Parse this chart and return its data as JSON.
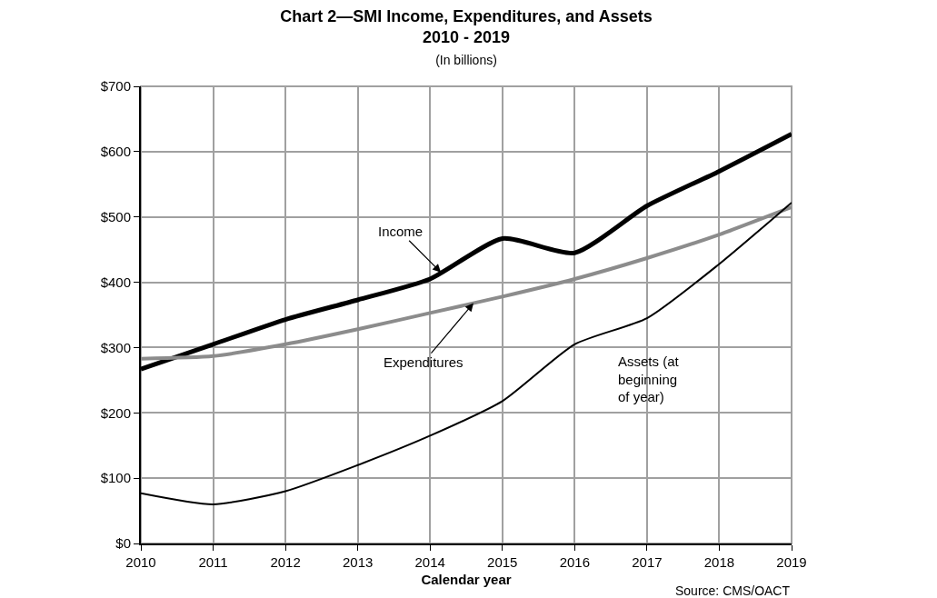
{
  "chart_data": {
    "type": "line",
    "title": "Chart 2—SMI Income, Expenditures, and Assets\n2010 - 2019",
    "subtitle": "(In billions)",
    "xlabel": "Calendar year",
    "x": [
      2010,
      2011,
      2012,
      2013,
      2014,
      2015,
      2016,
      2017,
      2018,
      2019
    ],
    "series": [
      {
        "color": "#000000",
        "values": [
          267,
          305,
          343,
          373,
          405,
          467,
          445,
          517,
          570,
          627
        ]
      },
      {
        "color": "#8c8c8c",
        "values": [
          283,
          287,
          305,
          328,
          353,
          378,
          405,
          437,
          473,
          515
        ]
      },
      {
        "color": "#000000",
        "values": [
          77,
          60,
          80,
          120,
          165,
          218,
          305,
          345,
          428,
          522
        ]
      }
    ],
    "xlim": [
      2010,
      2019
    ],
    "xticks": [
      2010,
      2011,
      2012,
      2013,
      2014,
      2015,
      2016,
      2017,
      2018,
      2019
    ],
    "ylim": [
      0,
      700
    ],
    "yticks": [
      {
        "value": 0,
        "label": "$0"
      },
      {
        "value": 100,
        "label": "$100"
      },
      {
        "value": 200,
        "label": "$200"
      },
      {
        "value": 300,
        "label": "$300"
      },
      {
        "value": 400,
        "label": "$400"
      },
      {
        "value": 500,
        "label": "$500"
      },
      {
        "value": 600,
        "label": "$600"
      },
      {
        "value": 700,
        "label": "$700"
      }
    ],
    "grid": true,
    "marker": "none",
    "line_style": "solid",
    "annotations": [
      {
        "text": "Income",
        "x": 2014.15,
        "y": 415
      },
      {
        "text": "Expenditures",
        "x": 2014.6,
        "y": 368
      },
      "Assets (at\nbeginning\nof year)",
      "Source: CMS/OACT"
    ]
  }
}
